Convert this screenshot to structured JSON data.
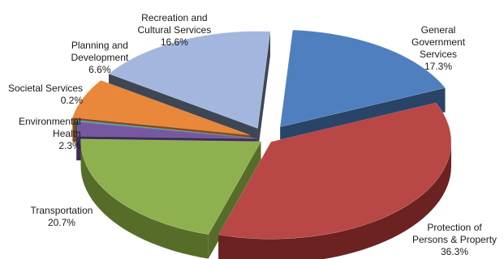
{
  "chart_data": {
    "type": "pie",
    "style": "3d-exploded",
    "slices": [
      {
        "label_lines": [
          "General",
          "Government",
          "Services"
        ],
        "value_label": "17.3%",
        "value": 17.3,
        "color": "#4f7fbf",
        "side_color": "#2a4468"
      },
      {
        "label_lines": [
          "Protection of",
          "Persons & Property"
        ],
        "value_label": "36.3%",
        "value": 36.3,
        "color": "#b84745",
        "side_color": "#6b2220"
      },
      {
        "label_lines": [
          "Transportation"
        ],
        "value_label": "20.7%",
        "value": 20.7,
        "color": "#8fb04e",
        "side_color": "#566d2a"
      },
      {
        "label_lines": [
          "Environmental",
          "Health"
        ],
        "value_label": "2.3%",
        "value": 2.3,
        "color": "#7558a0",
        "side_color": "#3f2c5a"
      },
      {
        "label_lines": [
          "Societal Services"
        ],
        "value_label": "0.2%",
        "value": 0.2,
        "color": "#3ca3bd",
        "side_color": "#1e5b6b"
      },
      {
        "label_lines": [
          "Planning and",
          "Development"
        ],
        "value_label": "6.6%",
        "value": 6.6,
        "color": "#e9873a",
        "side_color": "#8a4a16"
      },
      {
        "label_lines": [
          "Recreation and",
          "Cultural Services"
        ],
        "value_label": "16.6%",
        "value": 16.6,
        "color": "#a3b6dd",
        "side_color": "#3e4654"
      }
    ]
  }
}
